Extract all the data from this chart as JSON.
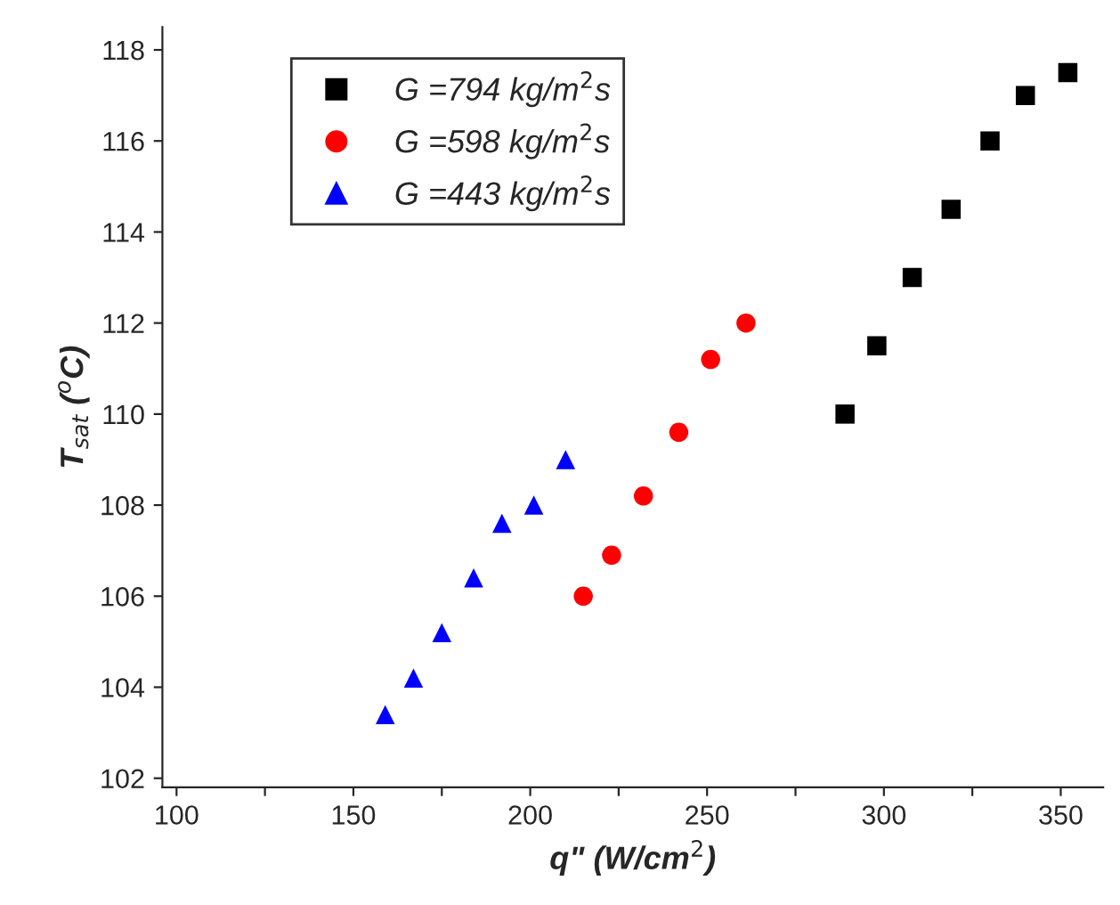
{
  "chart_data": {
    "type": "scatter",
    "xlabel": "q\" (W/cm$^{2}$)",
    "ylabel": "T$_{sat}$ ($^{o}$C)",
    "xlim": [
      96,
      362
    ],
    "ylim": [
      101.8,
      118.5
    ],
    "xticks": [
      100,
      {
        "value": 125,
        "label": null
      },
      150,
      {
        "value": 175,
        "label": null
      },
      200,
      {
        "value": 225,
        "label": null
      },
      250,
      {
        "value": 275,
        "label": null
      },
      300,
      {
        "value": 325,
        "label": null
      },
      350
    ],
    "yticks": [
      102,
      104,
      106,
      108,
      110,
      112,
      114,
      116,
      118
    ],
    "grid": false,
    "legend": "top left",
    "series": [
      {
        "name": "G =794 kg/m$^{2}$s",
        "color": "#000000",
        "marker": "square",
        "x": [
          289,
          298,
          308,
          319,
          330,
          340,
          352
        ],
        "values": [
          110,
          111.5,
          113,
          114.5,
          116,
          117,
          117.5
        ]
      },
      {
        "name": "G =598 kg/m$^{2}$s",
        "color": "#ff0000",
        "marker": "circle",
        "x": [
          215,
          223,
          232,
          242,
          251,
          261
        ],
        "values": [
          106,
          106.9,
          108.2,
          109.6,
          111.2,
          112
        ]
      },
      {
        "name": "G =443 kg/m$^{2}$s",
        "color": "#0000ff",
        "marker": "triangle",
        "x": [
          159,
          167,
          175,
          184,
          192,
          201,
          210
        ],
        "values": [
          103.4,
          104.2,
          105.2,
          106.4,
          107.6,
          108,
          109
        ]
      }
    ]
  }
}
